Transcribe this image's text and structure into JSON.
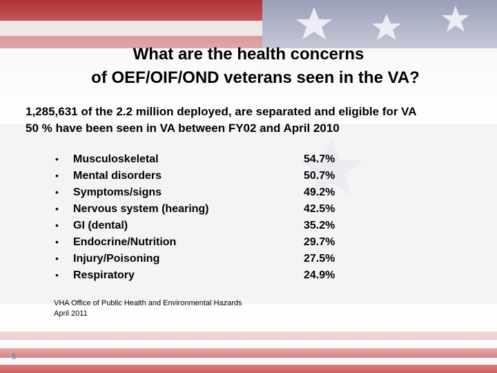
{
  "title": [
    "What are the health concerns",
    "of OEF/OIF/OND  veterans seen in the VA?"
  ],
  "intro": [
    "1,285,631 of the 2.2 million deployed, are separated and eligible for VA",
    "50 % have been seen in VA between FY02 and April 2010"
  ],
  "items": [
    {
      "label": "Musculoskeletal",
      "value": "54.7%"
    },
    {
      "label": "Mental disorders",
      "value": "50.7%"
    },
    {
      "label": "Symptoms/signs",
      "value": "49.2%"
    },
    {
      "label": "Nervous system (hearing)",
      "value": "42.5%"
    },
    {
      "label": "GI (dental)",
      "value": "35.2%"
    },
    {
      "label": "Endocrine/Nutrition",
      "value": "29.7%"
    },
    {
      "label": "Injury/Poisoning",
      "value": "27.5%"
    },
    {
      "label": "Respiratory",
      "value": "24.9%"
    }
  ],
  "source": [
    "VHA Office of Public Health and Environmental Hazards",
    "April 2011"
  ],
  "page_number": "5"
}
